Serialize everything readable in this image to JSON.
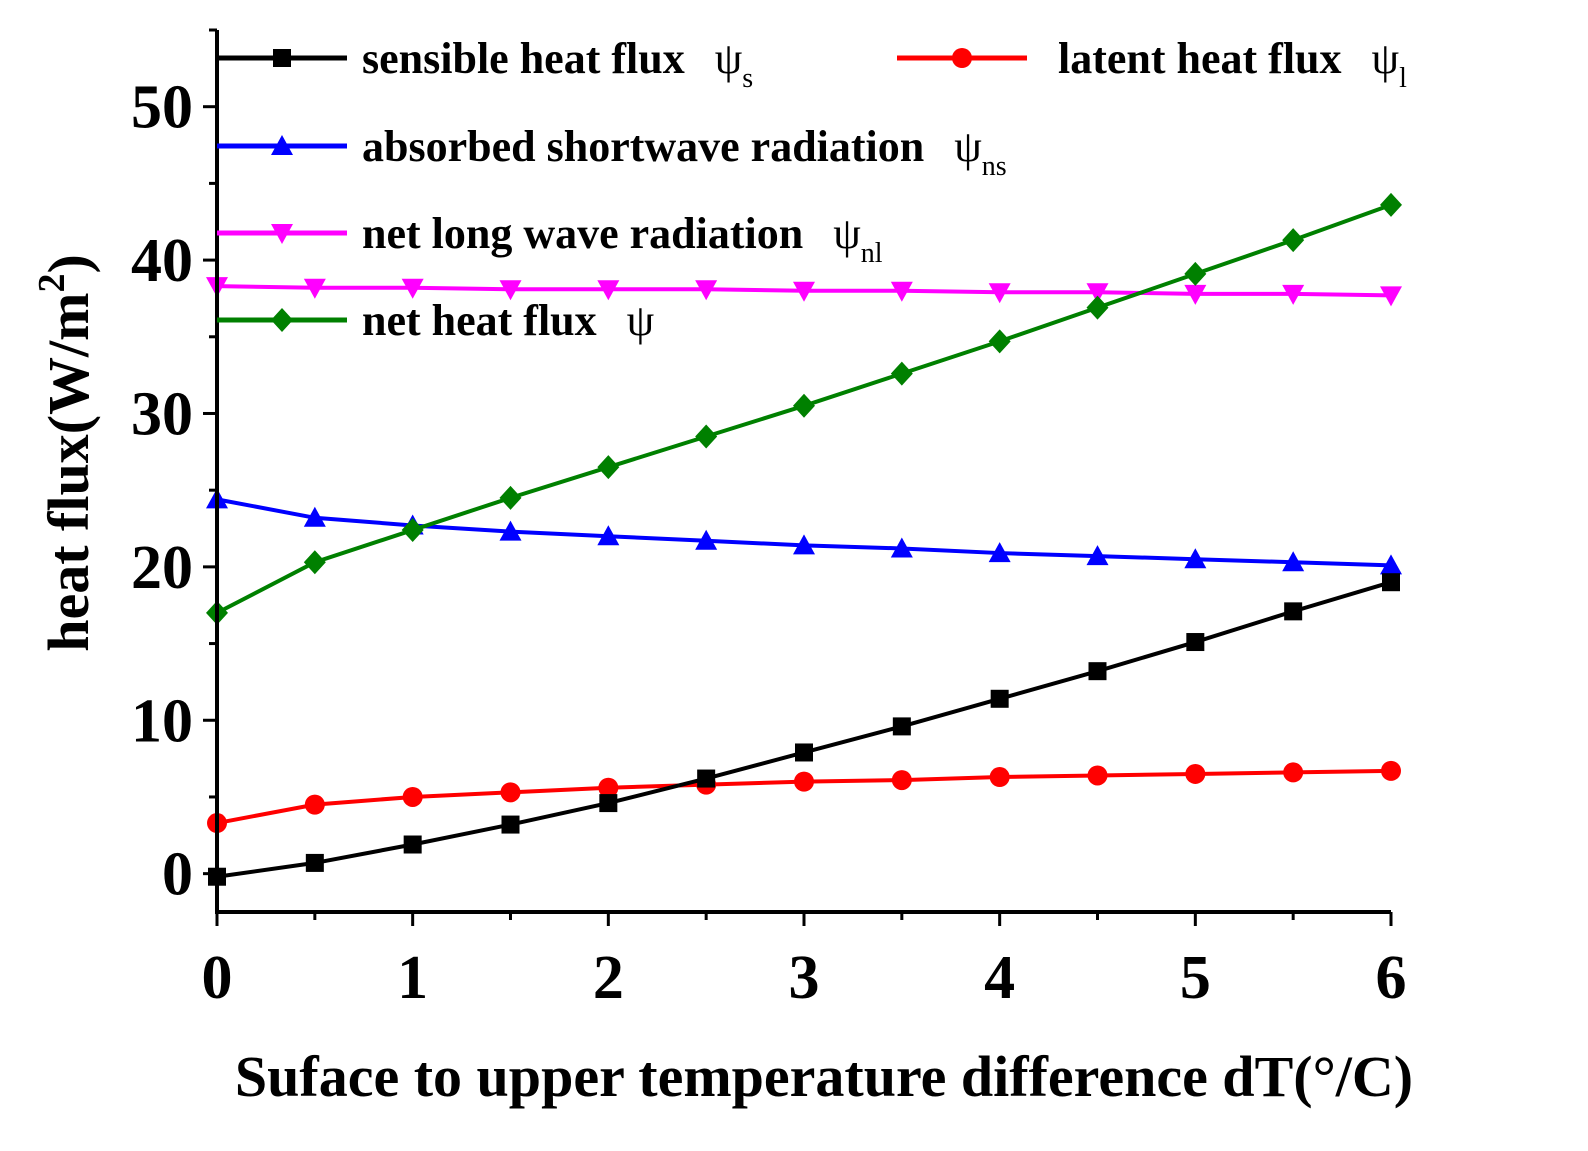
{
  "chart_data": {
    "type": "line",
    "xlabel": "Suface to upper temperature difference dT(°/C)",
    "ylabel": "heat flux(W/m",
    "ylabel_sup": "2",
    "ylabel_close": ")",
    "xlim": [
      0,
      6
    ],
    "ylim": [
      -2.5,
      55
    ],
    "xticks": [
      0,
      1,
      2,
      3,
      4,
      5,
      6
    ],
    "yticks": [
      0,
      10,
      20,
      30,
      40,
      50
    ],
    "x": [
      0,
      0.5,
      1,
      1.5,
      2,
      2.5,
      3,
      3.5,
      4,
      4.5,
      5,
      5.5,
      6
    ],
    "series": [
      {
        "name": "sensible heat flux",
        "symbol": "ψ",
        "subscript": "s",
        "color": "#000000",
        "marker": "square",
        "values": [
          -0.2,
          0.7,
          1.9,
          3.2,
          4.6,
          6.2,
          7.9,
          9.6,
          11.4,
          13.2,
          15.1,
          17.1,
          19.0
        ]
      },
      {
        "name": "latent heat flux",
        "symbol": "ψ",
        "subscript": "l",
        "color": "#ff0000",
        "marker": "circle",
        "values": [
          3.3,
          4.5,
          5.0,
          5.3,
          5.6,
          5.8,
          6.0,
          6.1,
          6.3,
          6.4,
          6.5,
          6.6,
          6.7
        ]
      },
      {
        "name": "absorbed shortwave radiation",
        "symbol": "ψ",
        "subscript": "ns",
        "color": "#0000ff",
        "marker": "triangle-up",
        "values": [
          24.4,
          23.2,
          22.7,
          22.3,
          22.0,
          21.7,
          21.4,
          21.2,
          20.9,
          20.7,
          20.5,
          20.3,
          20.1
        ]
      },
      {
        "name": "net long wave radiation",
        "symbol": "ψ",
        "subscript": "nl",
        "color": "#ff00ff",
        "marker": "triangle-down",
        "values": [
          38.3,
          38.2,
          38.2,
          38.1,
          38.1,
          38.1,
          38.0,
          38.0,
          37.9,
          37.9,
          37.8,
          37.8,
          37.7
        ]
      },
      {
        "name": "net heat flux",
        "symbol": "ψ",
        "subscript": "",
        "color": "#008000",
        "marker": "diamond",
        "values": [
          17.0,
          20.3,
          22.4,
          24.5,
          26.5,
          28.5,
          30.5,
          32.6,
          34.7,
          36.9,
          39.1,
          41.3,
          43.6
        ]
      }
    ],
    "legend_position": "top-left"
  }
}
